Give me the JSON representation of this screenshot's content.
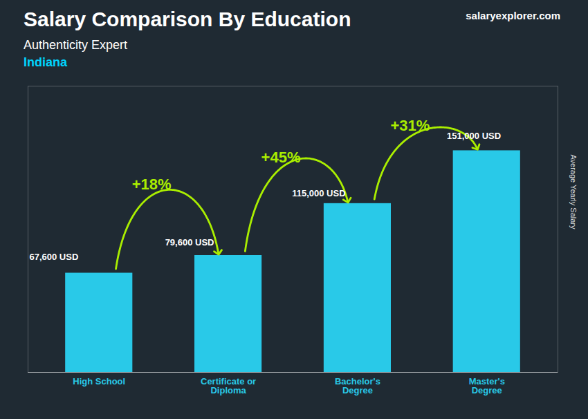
{
  "chart_data": {
    "type": "bar",
    "title": "Salary Comparison By Education",
    "subtitle": "Authenticity Expert",
    "location": "Indiana",
    "watermark": "salaryexplorer.com",
    "ylabel": "Average Yearly Salary",
    "categories": [
      "High School",
      "Certificate or\nDiploma",
      "Bachelor's\nDegree",
      "Master's\nDegree"
    ],
    "values": [
      67600,
      79600,
      115000,
      151000
    ],
    "value_labels": [
      "67,600 USD",
      "79,600 USD",
      "115,000 USD",
      "151,000 USD"
    ],
    "data_labels": true,
    "color": "#29c9e8",
    "annotations": [
      {
        "text": "+18%",
        "from": "High School",
        "to": "Certificate or\nDiploma",
        "color": "#aaee00"
      },
      {
        "text": "+45%",
        "from": "Certificate or\nDiploma",
        "to": "Bachelor's\nDegree",
        "color": "#aaee00"
      },
      {
        "text": "+31%",
        "from": "Bachelor's\nDegree",
        "to": "Master's\nDegree",
        "color": "#aaee00"
      }
    ],
    "ylim": [
      0,
      195000
    ],
    "tick_labels": "x",
    "grid": false
  }
}
